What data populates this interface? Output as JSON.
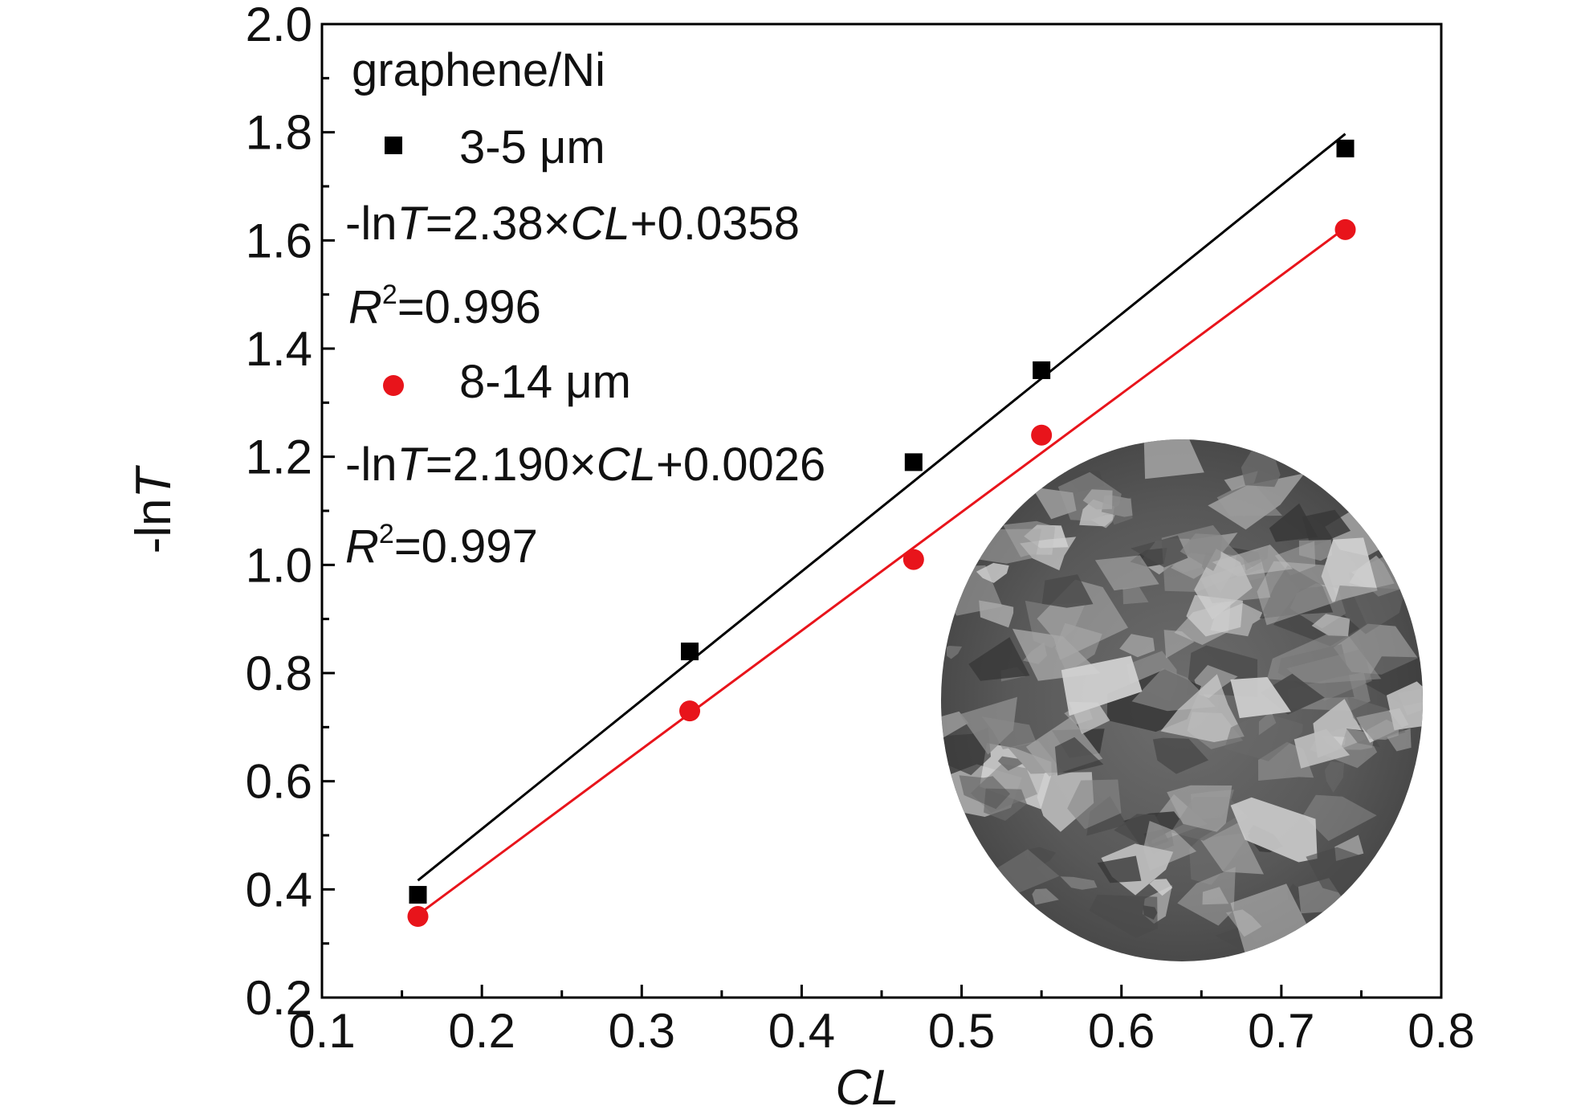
{
  "chart_data": {
    "type": "scatter",
    "title": "",
    "xlabel": "CL",
    "ylabel_prefix": "-ln",
    "ylabel_var": "T",
    "xlim": [
      0.1,
      0.8
    ],
    "ylim": [
      0.2,
      2.0
    ],
    "x_ticks": [
      "0.1",
      "0.2",
      "0.3",
      "0.4",
      "0.5",
      "0.6",
      "0.7",
      "0.8"
    ],
    "y_ticks": [
      "0.2",
      "0.4",
      "0.6",
      "0.8",
      "1.0",
      "1.2",
      "1.4",
      "1.6",
      "1.8",
      "2.0"
    ],
    "grid": false,
    "legend_position": "top-left",
    "legend_header": "graphene/Ni",
    "series": [
      {
        "name": "3-5 μm",
        "marker": "square",
        "color": "#000000",
        "x": [
          0.16,
          0.33,
          0.47,
          0.55,
          0.74
        ],
        "y": [
          0.39,
          0.84,
          1.19,
          1.36,
          1.77
        ],
        "fit": {
          "slope": 2.38,
          "intercept": 0.0358,
          "x_range": [
            0.16,
            0.74
          ],
          "eq_prefix": "-ln",
          "eq_var": "T",
          "eq_mid": "=2.38×",
          "eq_cl": "CL",
          "eq_suffix": "+0.0358",
          "r2_var": "R",
          "r2_sup": "2",
          "r2_value": "=0.996"
        }
      },
      {
        "name": "8-14 μm",
        "marker": "circle",
        "color": "#e8141b",
        "x": [
          0.16,
          0.33,
          0.47,
          0.55,
          0.74
        ],
        "y": [
          0.35,
          0.73,
          1.01,
          1.24,
          1.62
        ],
        "fit": {
          "slope": 2.19,
          "intercept": 0.0026,
          "x_range": [
            0.16,
            0.74
          ],
          "eq_prefix": "-ln",
          "eq_var": "T",
          "eq_mid": "=2.190×",
          "eq_cl": "CL",
          "eq_suffix": "+0.0026",
          "r2_var": "R",
          "r2_sup": "2",
          "r2_value": "=0.997"
        }
      }
    ],
    "inset": {
      "kind": "micrograph",
      "shape": "ellipse",
      "position": "bottom-right"
    }
  }
}
